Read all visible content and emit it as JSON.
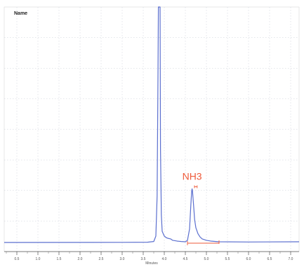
{
  "chart_data": {
    "type": "line",
    "title": "Name",
    "xlabel": "Minutes",
    "ylabel": "",
    "xlim": [
      0.2,
      7.2
    ],
    "ylim": [
      0,
      100
    ],
    "grid": true,
    "x_ticks": [
      0.5,
      1.0,
      1.5,
      2.0,
      2.5,
      3.0,
      3.5,
      4.0,
      4.5,
      5.0,
      5.5,
      6.0,
      6.5,
      7.0
    ],
    "x_tick_labels": [
      "0.5",
      "1.0",
      "1.5",
      "2.0",
      "2.5",
      "3.0",
      "3.5",
      "4.0",
      "4.5",
      "5.0",
      "5.5",
      "6.0",
      "6.5",
      "7.0"
    ],
    "series": [
      {
        "color": "#5b6fcf",
        "x": [
          0.2,
          3.0,
          3.6,
          3.75,
          3.8,
          3.83,
          3.85,
          3.86,
          3.9,
          3.91,
          3.93,
          3.95,
          4.0,
          4.05,
          4.1,
          4.15,
          4.2,
          4.3,
          4.4,
          4.5,
          4.55,
          4.6,
          4.63,
          4.65,
          4.66,
          4.67,
          4.7,
          4.72,
          4.75,
          4.8,
          4.85,
          4.9,
          5.0,
          5.1,
          5.3,
          6.0,
          7.2
        ],
        "y": [
          0.3,
          0.35,
          0.4,
          0.7,
          3,
          20,
          70,
          100,
          100,
          40,
          12,
          5,
          3,
          2.3,
          2,
          1.8,
          1.2,
          0.9,
          0.7,
          0.6,
          1.2,
          6,
          16,
          22,
          23,
          22,
          15,
          10,
          6.5,
          4,
          2.6,
          1.8,
          1.2,
          0.9,
          0.6,
          0.5,
          0.6
        ]
      }
    ],
    "annotations": [
      {
        "text": "NH3",
        "x": 4.66,
        "y": 23,
        "color": "#ee5a3a"
      }
    ],
    "integration": {
      "color": "#ee5a3a",
      "peak_window": [
        4.55,
        4.78
      ],
      "baseline": [
        4.55,
        5.3
      ]
    }
  }
}
